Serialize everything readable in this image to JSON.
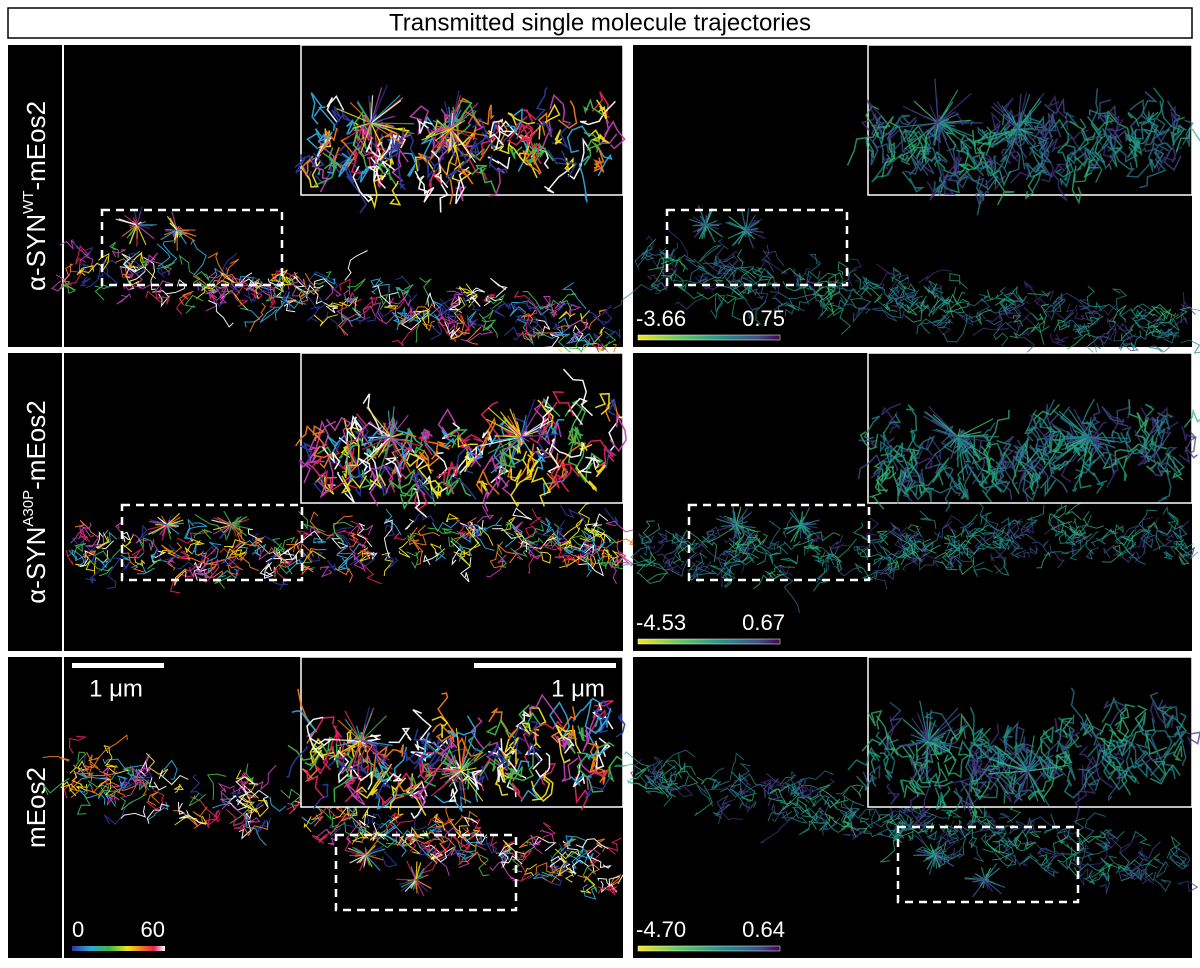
{
  "title": "Transmitted single molecule trajectories",
  "rows": [
    {
      "label": {
        "prefix": "α-SYN",
        "sup": "WT",
        "suffix": "-mEos2"
      },
      "colorbar": {
        "min": "-3.66",
        "max": "0.75"
      }
    },
    {
      "label": {
        "prefix": "α-SYN",
        "sup": "A30P",
        "suffix": "-mEos2"
      },
      "colorbar": {
        "min": "-4.53",
        "max": "0.67"
      }
    },
    {
      "label": {
        "prefix": "mEos2"
      },
      "colorbar": {
        "min": "-4.70",
        "max": "0.64"
      },
      "scale_bars": [
        "1 μm",
        "1 μm"
      ],
      "time_colorbar": {
        "min": "0",
        "max": "60"
      }
    }
  ]
}
